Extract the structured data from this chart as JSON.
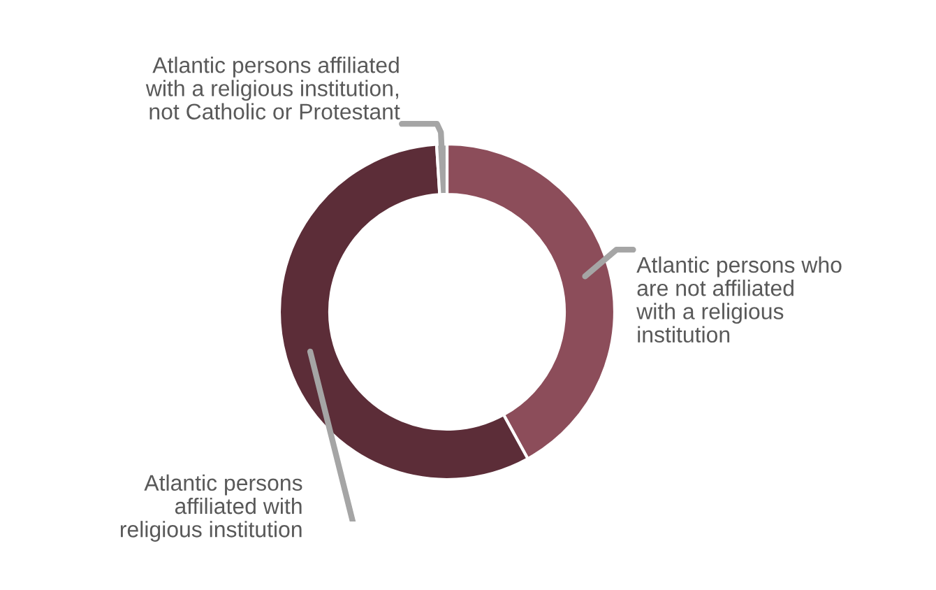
{
  "chart_data": {
    "type": "donut",
    "categories": [
      "Atlantic persons who are not affiliated with a religious institution",
      "Atlantic persons affiliated with religious institution",
      "Atlantic persons affiliated with a religious institution, not Catholic or Protestant"
    ],
    "values": [
      42,
      57,
      1
    ],
    "colors": [
      "#8c4d5a",
      "#5c2d38",
      "#a5a5a5"
    ],
    "legend": false
  }
}
